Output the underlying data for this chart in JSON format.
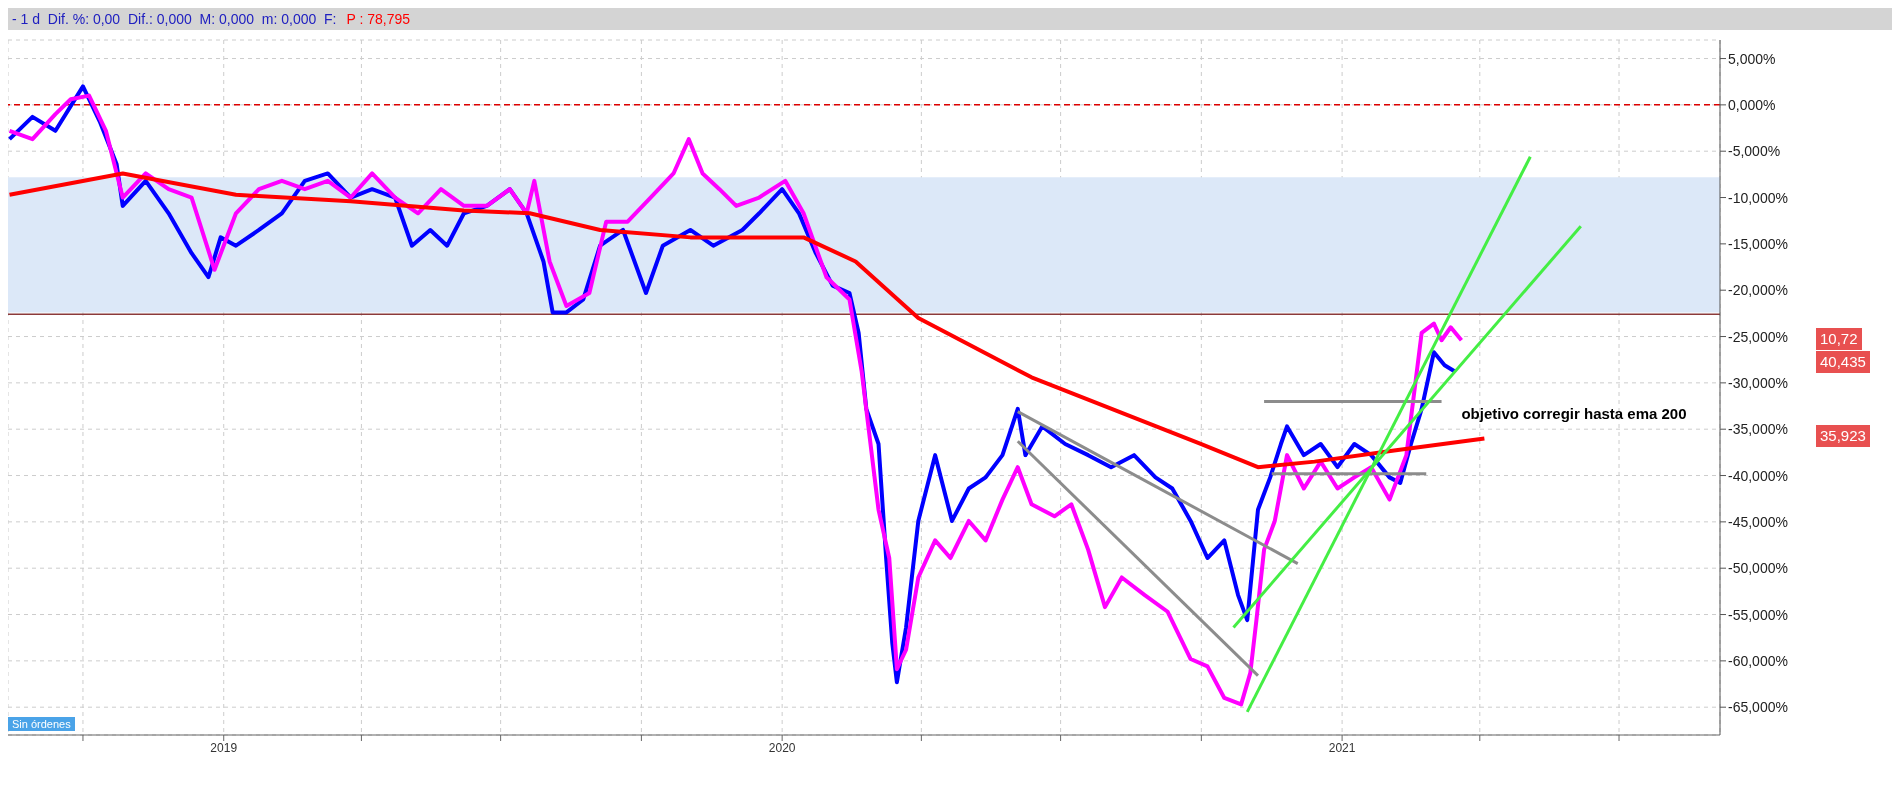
{
  "chart_data": {
    "type": "line",
    "title": "- 1 d  Dif. %: 0,00  Dif.: 0,000  M: 0,000  m: 0,000  F:",
    "subtitle": "P : 78,795",
    "xlim": [
      "2018-08-13",
      "2021-09-05"
    ],
    "ylim": [
      -68,
      7
    ],
    "xticks": [
      {
        "value": "2018-10-01",
        "label": null
      },
      {
        "value": "2019-01-01",
        "label": "2019"
      },
      {
        "value": "2019-04-01",
        "label": null
      },
      {
        "value": "2019-07-01",
        "label": null
      },
      {
        "value": "2019-10-01",
        "label": null
      },
      {
        "value": "2020-01-01",
        "label": "2020"
      },
      {
        "value": "2020-04-01",
        "label": null
      },
      {
        "value": "2020-07-01",
        "label": null
      },
      {
        "value": "2020-10-01",
        "label": null
      },
      {
        "value": "2021-01-01",
        "label": "2021"
      },
      {
        "value": "2021-04-01",
        "label": null
      },
      {
        "value": "2021-07-01",
        "label": null
      }
    ],
    "yticks": [
      {
        "value": 5,
        "label": "5,000%"
      },
      {
        "value": 0,
        "label": "0,000%"
      },
      {
        "value": -5,
        "label": "-5,000%"
      },
      {
        "value": -10,
        "label": "-10,000%"
      },
      {
        "value": -15,
        "label": "-15,000%"
      },
      {
        "value": -20,
        "label": "-20,000%"
      },
      {
        "value": -25,
        "label": "-25,000%"
      },
      {
        "value": -30,
        "label": "-30,000%"
      },
      {
        "value": -35,
        "label": "-35,000%"
      },
      {
        "value": -40,
        "label": "-40,000%"
      },
      {
        "value": -45,
        "label": "-45,000%"
      },
      {
        "value": -50,
        "label": "-50,000%"
      },
      {
        "value": -55,
        "label": "-55,000%"
      },
      {
        "value": -60,
        "label": "-60,000%"
      },
      {
        "value": -65,
        "label": "-65,000%"
      }
    ],
    "grid": true,
    "marker": "none",
    "line_style": "solid",
    "series": [
      {
        "color": "#0000ff",
        "x": [
          "2018-08-14",
          "2018-08-29",
          "2018-09-13",
          "2018-10-01",
          "2018-10-12",
          "2018-10-23",
          "2018-10-27",
          "2018-11-11",
          "2018-11-26",
          "2018-12-11",
          "2018-12-22",
          "2018-12-30",
          "2019-01-09",
          "2019-01-24",
          "2019-02-08",
          "2019-02-23",
          "2019-03-10",
          "2019-03-25",
          "2019-04-08",
          "2019-04-23",
          "2019-05-04",
          "2019-05-16",
          "2019-05-27",
          "2019-06-07",
          "2019-06-22",
          "2019-07-07",
          "2019-07-18",
          "2019-07-29",
          "2019-08-04",
          "2019-08-13",
          "2019-08-24",
          "2019-09-04",
          "2019-09-19",
          "2019-10-04",
          "2019-10-15",
          "2019-11-02",
          "2019-11-17",
          "2019-12-06",
          "2019-12-17",
          "2020-01-01",
          "2020-01-12",
          "2020-01-23",
          "2020-02-03",
          "2020-02-14",
          "2020-02-20",
          "2020-02-25",
          "2020-03-04",
          "2020-03-09",
          "2020-03-13",
          "2020-03-16",
          "2020-03-22",
          "2020-03-30",
          "2020-04-10",
          "2020-04-21",
          "2020-05-02",
          "2020-05-13",
          "2020-05-24",
          "2020-06-03",
          "2020-06-08",
          "2020-06-19",
          "2020-07-04",
          "2020-07-19",
          "2020-08-03",
          "2020-08-18",
          "2020-09-01",
          "2020-09-12",
          "2020-09-24",
          "2020-10-05",
          "2020-10-16",
          "2020-10-25",
          "2020-10-31",
          "2020-11-07",
          "2020-11-15",
          "2020-11-22",
          "2020-11-26",
          "2020-12-07",
          "2020-12-18",
          "2020-12-29",
          "2021-01-09",
          "2021-01-20",
          "2021-02-01",
          "2021-02-08",
          "2021-02-15",
          "2021-02-22",
          "2021-03-02",
          "2021-03-09",
          "2021-03-16"
        ],
        "values": [
          -3.7,
          -1.3,
          -2.8,
          2,
          -1.8,
          -6.4,
          -10.9,
          -8.2,
          -11.7,
          -16,
          -18.6,
          -14.3,
          -15.2,
          -13.5,
          -11.7,
          -8.2,
          -7.4,
          -10,
          -9.1,
          -10,
          -15.2,
          -13.5,
          -15.2,
          -11.7,
          -10.9,
          -9.1,
          -11.7,
          -16.9,
          -22.4,
          -22.4,
          -21,
          -15.2,
          -13.5,
          -20.3,
          -15.2,
          -13.5,
          -15.2,
          -13.5,
          -11.7,
          -9.1,
          -11.7,
          -16,
          -19.5,
          -20.3,
          -24.6,
          -32.8,
          -36.6,
          -49,
          -58.1,
          -62.3,
          -56.4,
          -44.9,
          -37.8,
          -44.9,
          -41.4,
          -40.2,
          -37.8,
          -32.8,
          -37.8,
          -34.7,
          -36.6,
          -37.8,
          -39.1,
          -37.8,
          -40.2,
          -41.4,
          -44.9,
          -48.9,
          -47,
          -52.9,
          -55.6,
          -43.7,
          -40.2,
          -36.6,
          -34.7,
          -37.8,
          -36.6,
          -39.1,
          -36.6,
          -37.8,
          -40.2,
          -40.8,
          -36.6,
          -32.8,
          -26.7,
          -28.1,
          -28.8
        ]
      },
      {
        "color": "#ff00ff",
        "x": [
          "2018-08-14",
          "2018-08-29",
          "2018-09-13",
          "2018-09-23",
          "2018-10-05",
          "2018-10-16",
          "2018-10-27",
          "2018-11-11",
          "2018-11-26",
          "2018-12-11",
          "2018-12-26",
          "2019-01-09",
          "2019-01-24",
          "2019-02-08",
          "2019-02-23",
          "2019-03-10",
          "2019-03-25",
          "2019-04-08",
          "2019-04-23",
          "2019-05-08",
          "2019-05-23",
          "2019-06-07",
          "2019-06-22",
          "2019-07-07",
          "2019-07-18",
          "2019-07-23",
          "2019-08-02",
          "2019-08-13",
          "2019-08-28",
          "2019-09-08",
          "2019-09-22",
          "2019-10-07",
          "2019-10-22",
          "2019-11-01",
          "2019-11-10",
          "2019-11-21",
          "2019-12-02",
          "2019-12-17",
          "2020-01-03",
          "2020-01-15",
          "2020-01-30",
          "2020-02-14",
          "2020-02-22",
          "2020-03-04",
          "2020-03-11",
          "2020-03-16",
          "2020-03-22",
          "2020-03-30",
          "2020-04-10",
          "2020-04-20",
          "2020-05-02",
          "2020-05-13",
          "2020-05-24",
          "2020-06-03",
          "2020-06-12",
          "2020-06-27",
          "2020-07-08",
          "2020-07-19",
          "2020-07-30",
          "2020-08-10",
          "2020-08-25",
          "2020-09-09",
          "2020-09-24",
          "2020-10-05",
          "2020-10-16",
          "2020-10-27",
          "2020-11-02",
          "2020-11-06",
          "2020-11-11",
          "2020-11-18",
          "2020-11-26",
          "2020-12-07",
          "2020-12-18",
          "2020-12-29",
          "2021-01-09",
          "2021-01-20",
          "2021-02-01",
          "2021-02-12",
          "2021-02-22",
          "2021-03-02",
          "2021-03-07",
          "2021-03-13",
          "2021-03-20"
        ],
        "values": [
          -2.8,
          -3.7,
          -1,
          0.6,
          1,
          -2.8,
          -10,
          -7.4,
          -9.1,
          -10,
          -17.8,
          -11.7,
          -9.1,
          -8.2,
          -9.1,
          -8.2,
          -10,
          -7.4,
          -10,
          -11.7,
          -9.1,
          -10.9,
          -10.9,
          -9.1,
          -11.7,
          -8.2,
          -16.9,
          -21.7,
          -20.3,
          -12.6,
          -12.6,
          -10,
          -7.4,
          -3.7,
          -7.4,
          -9.1,
          -10.9,
          -10,
          -8.2,
          -11.7,
          -18.6,
          -21,
          -28.8,
          -43.7,
          -48.9,
          -60.9,
          -58.8,
          -51,
          -47,
          -48.9,
          -44.9,
          -47,
          -42.6,
          -39.1,
          -43.1,
          -44.4,
          -43.1,
          -48,
          -54.2,
          -51,
          -52.9,
          -54.7,
          -59.8,
          -60.6,
          -64,
          -64.7,
          -61.3,
          -55.6,
          -48,
          -44.9,
          -37.8,
          -41.4,
          -38.5,
          -41.4,
          -40.2,
          -39.1,
          -42.6,
          -37.8,
          -24.6,
          -23.6,
          -25.4,
          -24,
          -25.4
        ]
      },
      {
        "color": "#ff0000",
        "x": [
          "2018-08-14",
          "2018-10-27",
          "2019-01-09",
          "2019-03-25",
          "2019-06-07",
          "2019-07-20",
          "2019-09-04",
          "2019-11-02",
          "2020-01-15",
          "2020-02-18",
          "2020-03-30",
          "2020-06-12",
          "2020-08-25",
          "2020-10-01",
          "2020-11-07",
          "2020-12-14",
          "2021-02-04",
          "2021-04-04"
        ],
        "values": [
          -9.7,
          -7.4,
          -9.7,
          -10.4,
          -11.4,
          -11.7,
          -13.5,
          -14.3,
          -14.3,
          -16.9,
          -23,
          -29.4,
          -34.2,
          -36.6,
          -39.1,
          -38.5,
          -37.3,
          -36
        ]
      },
      {
        "color": "#8c8c8c",
        "x": [
          "2020-06-03",
          "2020-12-03"
        ],
        "values": [
          -33.1,
          -49.5
        ]
      },
      {
        "color": "#8c8c8c",
        "x": [
          "2020-06-03",
          "2020-11-07"
        ],
        "values": [
          -36.3,
          -61.6
        ]
      },
      {
        "color": "#8c8c8c",
        "x": [
          "2020-11-11",
          "2021-03-07"
        ],
        "values": [
          -32,
          -32
        ]
      },
      {
        "color": "#8c8c8c",
        "x": [
          "2020-11-16",
          "2021-02-25"
        ],
        "values": [
          -39.8,
          -39.8
        ]
      },
      {
        "color": "#44ee44",
        "x": [
          "2020-10-31",
          "2021-05-04"
        ],
        "values": [
          -65.5,
          -5.6
        ]
      },
      {
        "color": "#44ee44",
        "x": [
          "2020-10-22",
          "2021-06-06"
        ],
        "values": [
          -56.4,
          -13.1
        ]
      }
    ],
    "ref_lines": [
      {
        "axis": "y",
        "value": 0,
        "color": "#dd0000",
        "line_style": "dashed"
      },
      {
        "axis": "y",
        "value": -22.6,
        "color": "#8b3a3a",
        "line_style": "solid"
      }
    ],
    "bands": [
      {
        "axis": "y",
        "from": -7.8,
        "to": -22.4,
        "color": "#dce8f8"
      }
    ],
    "annotations": [
      "objetivo corregir hasta ema 200",
      "10,72",
      "40,435",
      "35,923",
      "Sin órdenes"
    ]
  }
}
